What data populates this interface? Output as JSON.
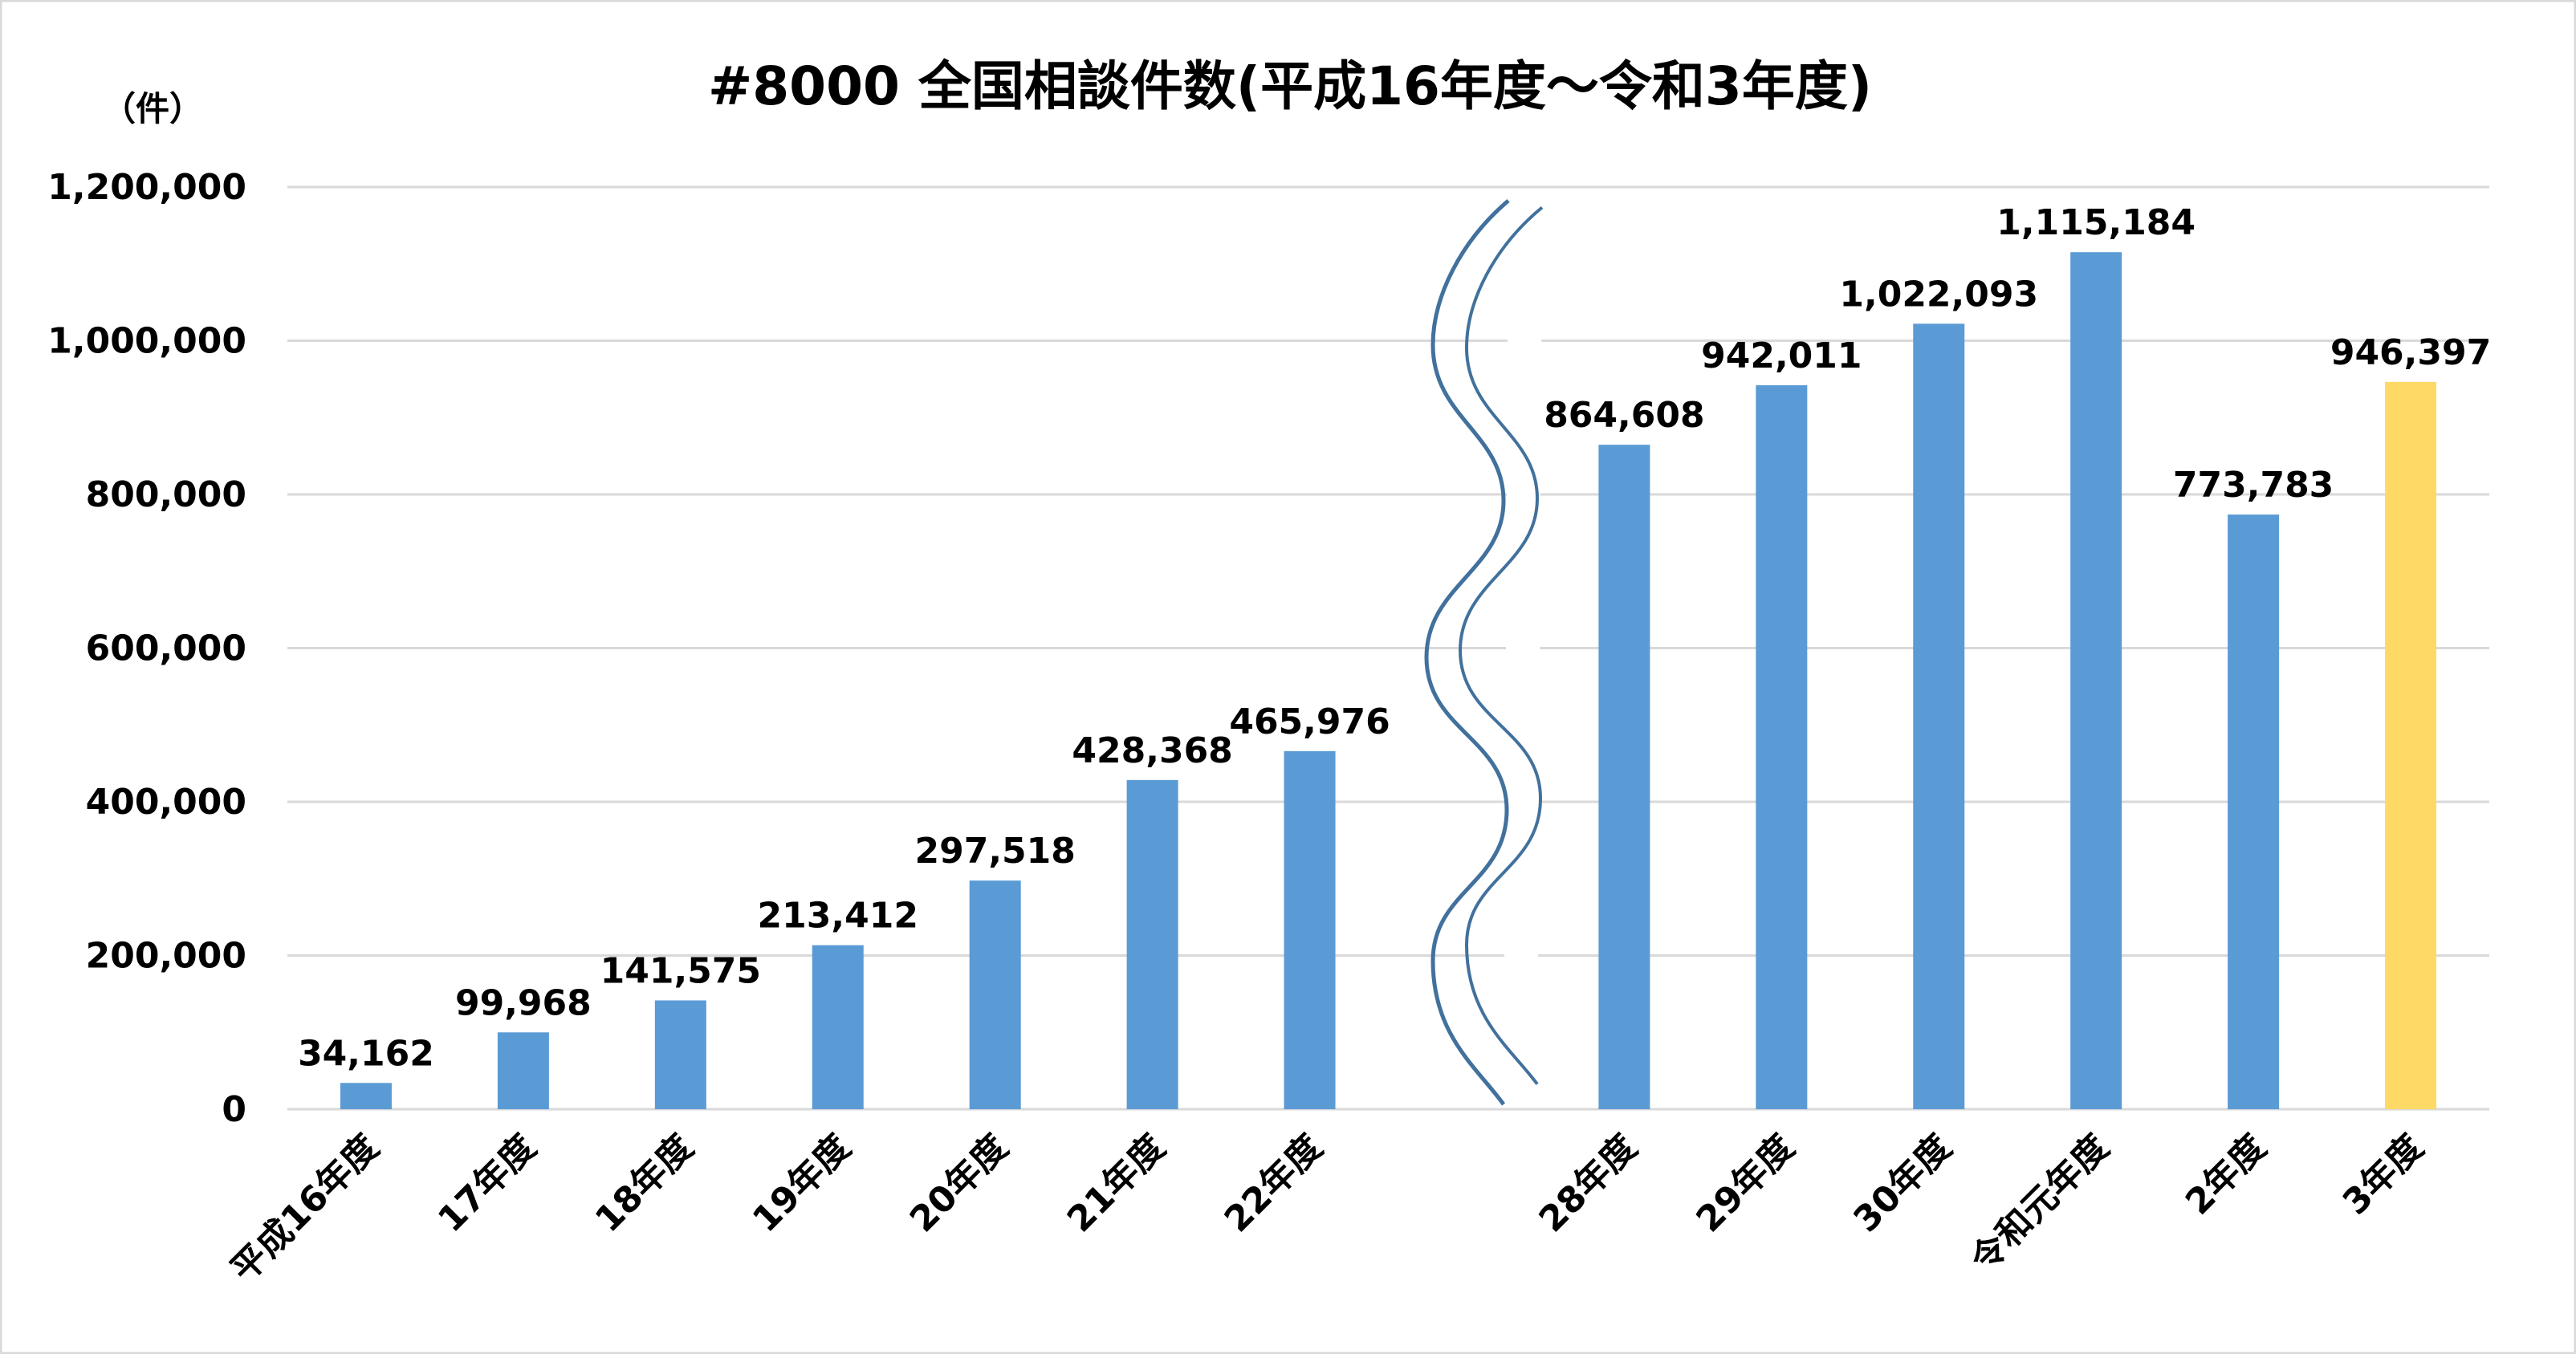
{
  "chart_data": {
    "type": "bar",
    "title": "#8000 全国相談件数(平成16年度～令和3年度)",
    "ylabel": "（件）",
    "xlabel": "",
    "ylim": [
      0,
      1200000
    ],
    "yticks": [
      0,
      200000,
      400000,
      600000,
      800000,
      1000000,
      1200000
    ],
    "ytick_labels": [
      "0",
      "200,000",
      "400,000",
      "600,000",
      "800,000",
      "1,000,000",
      "1,200,000"
    ],
    "grid": true,
    "axis_break": "between 22年度 and 28年度",
    "categories": [
      "平成16年度",
      "17年度",
      "18年度",
      "19年度",
      "20年度",
      "21年度",
      "22年度",
      "28年度",
      "29年度",
      "30年度",
      "令和元年度",
      "2年度",
      "3年度"
    ],
    "values": [
      34162,
      99968,
      141575,
      213412,
      297518,
      428368,
      465976,
      864608,
      942011,
      1022093,
      1115184,
      773783,
      946397
    ],
    "value_labels": [
      "34,162",
      "99,968",
      "141,575",
      "213,412",
      "297,518",
      "428,368",
      "465,976",
      "864,608",
      "942,011",
      "1,022,093",
      "1,115,184",
      "773,783",
      "946,397"
    ],
    "colors": {
      "default": "#5B9BD5",
      "highlight": "#FFD966",
      "highlight_category": "3年度",
      "grid": "#D9D9D9",
      "break_line": "#41719C"
    }
  }
}
